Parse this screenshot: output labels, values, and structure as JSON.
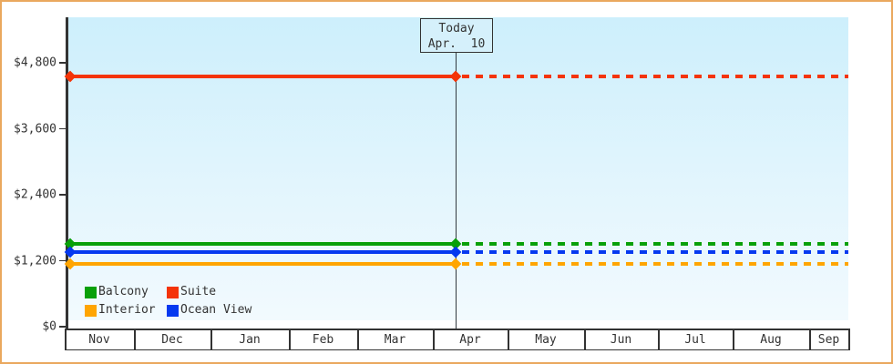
{
  "window": {
    "frame_border_color": "#eaa85e",
    "background_color": "#ffffff",
    "text_color": "#333333"
  },
  "chart_data": {
    "type": "line",
    "title": "",
    "xlabel": "",
    "ylabel": "",
    "ylim": [
      0,
      4800
    ],
    "grid": false,
    "plot_background_top": "#cdeffc",
    "plot_background_bottom": "#f2fafe",
    "x_categories": [
      "Nov",
      "Dec",
      "Jan",
      "Feb",
      "Mar",
      "Apr",
      "May",
      "Jun",
      "Jul",
      "Aug",
      "Sep"
    ],
    "y_ticks": [
      {
        "label": "$0",
        "value": 0
      },
      {
        "label": "$1,200",
        "value": 1200
      },
      {
        "label": "$2,400",
        "value": 2400
      },
      {
        "label": "$3,600",
        "value": 3600
      },
      {
        "label": "$4,800",
        "value": 4800
      }
    ],
    "series": [
      {
        "name": "Suite",
        "color": "#f43408",
        "value": 4550
      },
      {
        "name": "Balcony",
        "color": "#09a009",
        "value": 1510
      },
      {
        "name": "Ocean View",
        "color": "#0539f0",
        "value": 1360
      },
      {
        "name": "Interior",
        "color": "#ffa502",
        "value": 1140
      }
    ],
    "line_style_note": "each series is a constant price line: solid with diamond endpoint markers up to today, dotted projection after today",
    "today": {
      "label_line1": "Today",
      "label_line2": "Apr.  10",
      "month": "Apr",
      "day": 10
    },
    "legend_position": "bottom-left inside plot"
  },
  "legend": {
    "items": [
      {
        "label": "Balcony",
        "color": "#09a009"
      },
      {
        "label": "Suite",
        "color": "#f43408"
      },
      {
        "label": "Interior",
        "color": "#ffa502"
      },
      {
        "label": "Ocean View",
        "color": "#0539f0"
      }
    ]
  }
}
